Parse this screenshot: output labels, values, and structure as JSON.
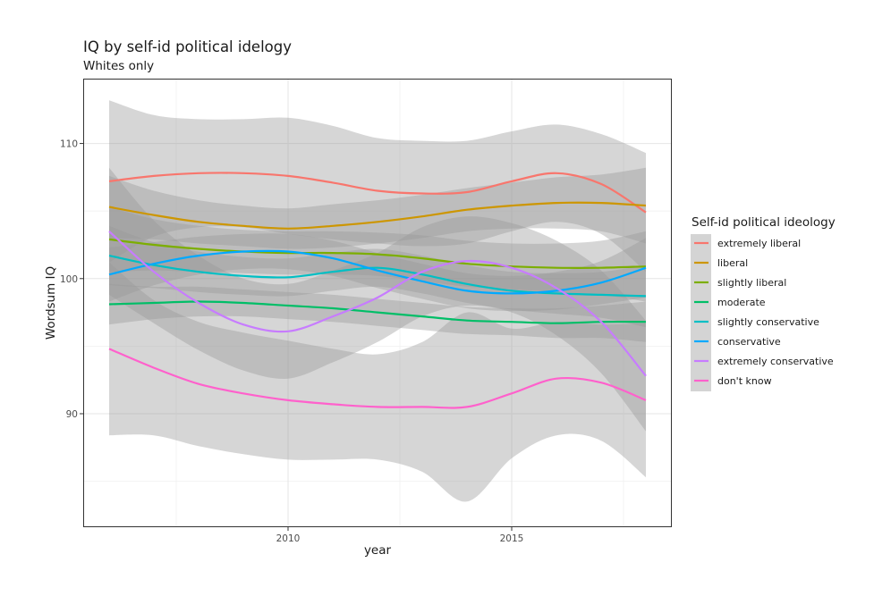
{
  "chart_data": {
    "type": "line",
    "title": "IQ by self-id political idelogy",
    "subtitle": "Whites only",
    "xlabel": "year",
    "ylabel": "Wordsum IQ",
    "xlim": [
      2005.42,
      2018.58
    ],
    "ylim": [
      81.6,
      114.8
    ],
    "x_ticks": [
      2010,
      2015
    ],
    "x_tick_labels": [
      "2010",
      "2015"
    ],
    "y_ticks": [
      90,
      100,
      110
    ],
    "y_tick_labels": [
      "90",
      "100",
      "110"
    ],
    "x_minor": [
      2007.5,
      2012.5,
      2017.5
    ],
    "y_minor": [
      85,
      95,
      105
    ],
    "grid": true,
    "ribbon": "confidence band (gray)",
    "legend": {
      "title": "Self-id political ideology",
      "placement": "right"
    },
    "x": [
      2006,
      2007,
      2008,
      2009,
      2010,
      2011,
      2012,
      2013,
      2014,
      2015,
      2016,
      2017,
      2018
    ],
    "series": [
      {
        "name": "extremely liberal",
        "color": "#F8766D",
        "values": [
          107.2,
          107.6,
          107.8,
          107.8,
          107.6,
          107.1,
          106.5,
          106.3,
          106.4,
          107.2,
          107.8,
          107.0,
          104.9
        ],
        "se": [
          6.0,
          4.5,
          4.0,
          4.0,
          4.3,
          4.2,
          3.9,
          3.9,
          3.8,
          3.7,
          3.6,
          3.7,
          4.4
        ]
      },
      {
        "name": "liberal",
        "color": "#CD9600",
        "values": [
          105.3,
          104.7,
          104.2,
          103.9,
          103.7,
          103.9,
          104.2,
          104.6,
          105.1,
          105.4,
          105.6,
          105.6,
          105.4
        ],
        "se": [
          2.3,
          1.8,
          1.6,
          1.5,
          1.5,
          1.6,
          1.6,
          1.6,
          1.6,
          1.7,
          1.9,
          2.1,
          2.8
        ]
      },
      {
        "name": "slightly liberal",
        "color": "#7CAE00",
        "values": [
          102.9,
          102.5,
          102.2,
          102.0,
          101.9,
          101.9,
          101.8,
          101.5,
          101.1,
          100.9,
          100.8,
          100.8,
          100.9
        ],
        "se": [
          2.4,
          1.9,
          1.7,
          1.6,
          1.6,
          1.6,
          1.6,
          1.7,
          1.7,
          1.7,
          1.8,
          2.0,
          2.6
        ]
      },
      {
        "name": "moderate",
        "color": "#00BE67",
        "values": [
          98.1,
          98.2,
          98.3,
          98.2,
          98.0,
          97.8,
          97.5,
          97.2,
          96.9,
          96.8,
          96.7,
          96.8,
          96.8
        ],
        "se": [
          1.5,
          1.2,
          1.1,
          1.0,
          1.0,
          1.0,
          1.0,
          1.0,
          1.0,
          1.0,
          1.1,
          1.2,
          1.5
        ]
      },
      {
        "name": "slightly conservative",
        "color": "#00BFC4",
        "values": [
          101.7,
          101.0,
          100.5,
          100.2,
          100.1,
          100.5,
          100.8,
          100.3,
          99.6,
          99.1,
          98.9,
          98.8,
          98.7
        ],
        "se": [
          2.2,
          1.7,
          1.5,
          1.4,
          1.4,
          1.4,
          1.4,
          1.4,
          1.4,
          1.4,
          1.5,
          1.7,
          2.3
        ]
      },
      {
        "name": "conservative",
        "color": "#00A9FF",
        "values": [
          100.3,
          101.1,
          101.7,
          102.0,
          102.0,
          101.5,
          100.6,
          99.8,
          99.1,
          98.9,
          99.1,
          99.7,
          100.8
        ],
        "se": [
          2.0,
          1.6,
          1.4,
          1.3,
          1.3,
          1.3,
          1.3,
          1.3,
          1.3,
          1.3,
          1.4,
          1.6,
          2.2
        ]
      },
      {
        "name": "extremely conservative",
        "color": "#C77CFF",
        "values": [
          103.5,
          100.5,
          98.2,
          96.6,
          96.1,
          97.2,
          98.6,
          100.5,
          101.3,
          100.8,
          99.3,
          96.8,
          92.8
        ],
        "se": [
          4.7,
          3.8,
          3.5,
          3.4,
          3.5,
          3.4,
          3.3,
          3.3,
          3.3,
          3.3,
          3.5,
          3.8,
          4.1
        ]
      },
      {
        "name": "don't know",
        "color": "#FF61CC",
        "values": [
          94.8,
          93.4,
          92.2,
          91.5,
          91.0,
          90.7,
          90.5,
          90.5,
          90.5,
          91.5,
          92.6,
          92.3,
          91.0
        ],
        "se": [
          6.4,
          5.0,
          4.6,
          4.5,
          4.4,
          4.1,
          3.9,
          4.8,
          7.0,
          4.8,
          4.2,
          4.3,
          5.7
        ]
      }
    ]
  }
}
